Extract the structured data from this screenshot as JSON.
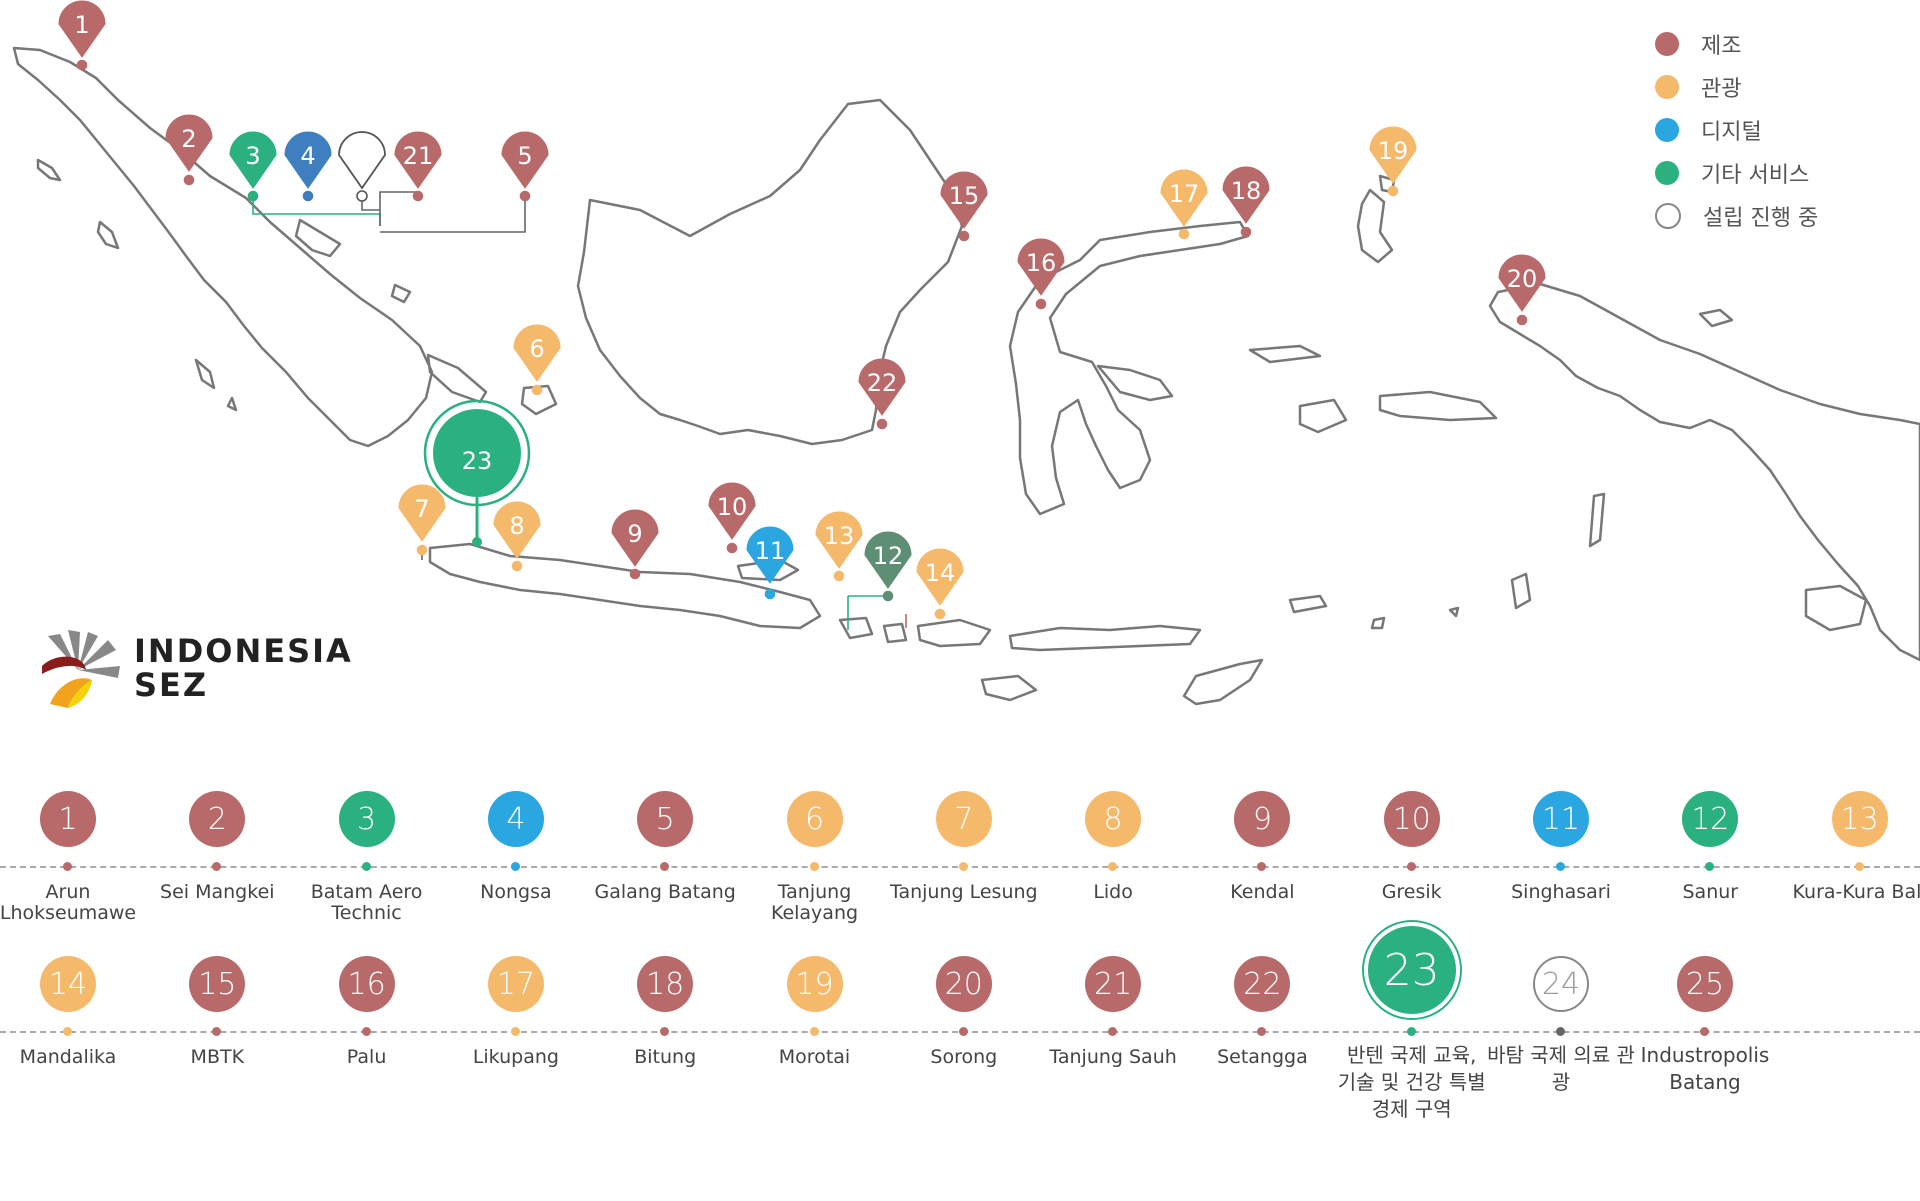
{
  "legend": [
    {
      "label": "제조",
      "color": "#b86a6a",
      "outline": false
    },
    {
      "label": "관광",
      "color": "#f5b96b",
      "outline": false
    },
    {
      "label": "디지털",
      "color": "#2aa6e0",
      "outline": false
    },
    {
      "label": "기타 서비스",
      "color": "#2bb07f",
      "outline": false
    },
    {
      "label": "설립 진행 중",
      "color": "#ffffff",
      "outline": true
    }
  ],
  "logo": {
    "line1": "INDONESIA",
    "line2": "SEZ"
  },
  "zones": [
    {
      "num": "1",
      "name": "Arun Lhokseumawe",
      "color": "#b86a6a"
    },
    {
      "num": "2",
      "name": "Sei Mangkei",
      "color": "#b86a6a"
    },
    {
      "num": "3",
      "name": "Batam Aero Technic",
      "color": "#2bb07f"
    },
    {
      "num": "4",
      "name": "Nongsa",
      "color": "#2aa6e0"
    },
    {
      "num": "5",
      "name": "Galang Batang",
      "color": "#b86a6a"
    },
    {
      "num": "6",
      "name": "Tanjung Kelayang",
      "color": "#f5b96b"
    },
    {
      "num": "7",
      "name": "Tanjung Lesung",
      "color": "#f5b96b"
    },
    {
      "num": "8",
      "name": "Lido",
      "color": "#f5b96b"
    },
    {
      "num": "9",
      "name": "Kendal",
      "color": "#b86a6a"
    },
    {
      "num": "10",
      "name": "Gresik",
      "color": "#b86a6a"
    },
    {
      "num": "11",
      "name": "Singhasari",
      "color": "#2aa6e0"
    },
    {
      "num": "12",
      "name": "Sanur",
      "color": "#2bb07f"
    },
    {
      "num": "13",
      "name": "Kura-Kura Bali",
      "color": "#f5b96b"
    },
    {
      "num": "14",
      "name": "Mandalika",
      "color": "#f5b96b"
    },
    {
      "num": "15",
      "name": "MBTK",
      "color": "#b86a6a"
    },
    {
      "num": "16",
      "name": "Palu",
      "color": "#b86a6a"
    },
    {
      "num": "17",
      "name": "Likupang",
      "color": "#f5b96b"
    },
    {
      "num": "18",
      "name": "Bitung",
      "color": "#b86a6a"
    },
    {
      "num": "19",
      "name": "Morotai",
      "color": "#f5b96b"
    },
    {
      "num": "20",
      "name": "Sorong",
      "color": "#b86a6a"
    },
    {
      "num": "21",
      "name": "Tanjung Sauh",
      "color": "#b86a6a"
    },
    {
      "num": "22",
      "name": "Setangga",
      "color": "#b86a6a"
    },
    {
      "num": "23",
      "name": "반텐 국제 교육, 기술 및 건강 특별 경제 구역",
      "color": "#2bb07f"
    },
    {
      "num": "24",
      "name": "바탐 국제 의료 관광",
      "color": "#ffffff"
    },
    {
      "num": "25",
      "name": "Industropolis Batang",
      "color": "#b86a6a"
    }
  ]
}
